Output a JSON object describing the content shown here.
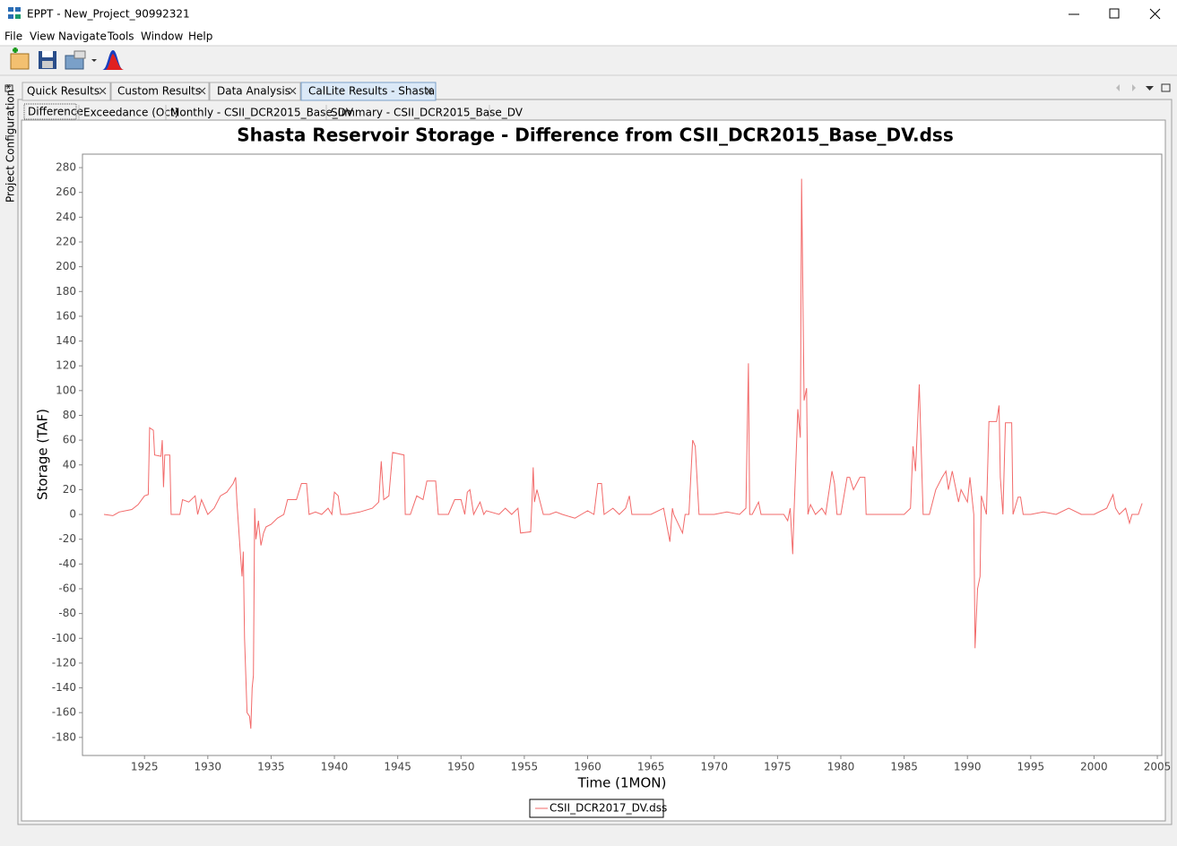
{
  "window": {
    "title": "EPPT - New_Project_90992321"
  },
  "menu": [
    "File",
    "View",
    "Navigate",
    "Tools",
    "Window",
    "Help"
  ],
  "side_panel": "Project Configuration*",
  "tabs": [
    "Quick Results",
    "Custom Results",
    "Data Analysis",
    "CalLite Results - Shasta"
  ],
  "subtabs": [
    "Difference",
    "Exceedance (Oct)",
    "Monthly - CSII_DCR2015_Base_DV",
    "Summary - CSII_DCR2015_Base_DV"
  ],
  "chart_data": {
    "type": "line",
    "title": "Shasta Reservoir Storage - Difference from CSII_DCR2015_Base_DV.dss",
    "x_label": "Time (1MON)",
    "y_label": "Storage (TAF)",
    "x": [
      1921.8,
      1922.5,
      1923.0,
      1924.0,
      1924.5,
      1925.0,
      1925.3,
      1925.4,
      1925.7,
      1925.8,
      1926.3,
      1926.4,
      1926.5,
      1926.6,
      1927.0,
      1927.1,
      1927.8,
      1928.0,
      1928.5,
      1929.0,
      1929.2,
      1929.5,
      1930.0,
      1930.5,
      1931.0,
      1931.5,
      1932.0,
      1932.2,
      1932.3,
      1932.6,
      1932.7,
      1932.8,
      1932.9,
      1933.1,
      1933.3,
      1933.4,
      1933.5,
      1933.6,
      1933.7,
      1933.8,
      1934.0,
      1934.2,
      1934.4,
      1934.6,
      1935.0,
      1935.5,
      1936.0,
      1936.3,
      1937.0,
      1937.4,
      1937.8,
      1938.0,
      1938.5,
      1939.0,
      1939.5,
      1939.8,
      1940.0,
      1940.3,
      1940.5,
      1941.0,
      1942.0,
      1943.0,
      1943.5,
      1943.7,
      1943.9,
      1944.3,
      1944.6,
      1945.5,
      1945.6,
      1946.0,
      1946.5,
      1947.0,
      1947.3,
      1948.0,
      1948.2,
      1949.0,
      1949.5,
      1950.0,
      1950.3,
      1950.5,
      1950.7,
      1951.0,
      1951.5,
      1951.8,
      1952.0,
      1953.0,
      1953.5,
      1954.0,
      1954.5,
      1954.7,
      1955.5,
      1955.6,
      1955.7,
      1955.8,
      1956.0,
      1956.5,
      1957.0,
      1957.5,
      1958.0,
      1959.0,
      1959.5,
      1960.0,
      1960.5,
      1960.8,
      1961.1,
      1961.3,
      1962.0,
      1962.5,
      1963.0,
      1963.3,
      1963.5,
      1964.0,
      1965.0,
      1966.0,
      1966.5,
      1966.7,
      1966.8,
      1967.5,
      1967.7,
      1968.0,
      1968.3,
      1968.5,
      1968.8,
      1970.0,
      1971.0,
      1972.0,
      1972.5,
      1972.7,
      1972.8,
      1973.0,
      1973.5,
      1973.7,
      1974.0,
      1975.5,
      1975.8,
      1976.0,
      1976.2,
      1976.3,
      1976.6,
      1976.8,
      1976.9,
      1977.1,
      1977.3,
      1977.4,
      1977.6,
      1978.0,
      1978.5,
      1978.8,
      1979.3,
      1979.5,
      1979.7,
      1980.0,
      1980.5,
      1980.7,
      1981.0,
      1981.5,
      1981.9,
      1982.0,
      1983.0,
      1984.0,
      1985.0,
      1985.5,
      1985.7,
      1985.9,
      1986.2,
      1986.5,
      1987.0,
      1987.5,
      1988.0,
      1988.3,
      1988.5,
      1988.8,
      1989.0,
      1989.3,
      1989.5,
      1990.0,
      1990.2,
      1990.5,
      1990.6,
      1990.8,
      1991.0,
      1991.1,
      1991.5,
      1991.7,
      1992.3,
      1992.5,
      1992.6,
      1992.8,
      1993.0,
      1993.5,
      1993.6,
      1994.0,
      1994.2,
      1994.4,
      1995.0,
      1996.0,
      1997.0,
      1998.0,
      1999.0,
      2000.0,
      2001.0,
      2001.5,
      2001.7,
      2002.0,
      2002.5,
      2002.8,
      2003.0,
      2003.5,
      2003.8
    ],
    "series": [
      {
        "name": "CSII_DCR2017_DV.dss",
        "color": "#f26a6a",
        "values": [
          0,
          -1,
          2,
          4,
          8,
          15,
          16,
          70,
          68,
          48,
          47,
          60,
          22,
          48,
          48,
          0,
          0,
          12,
          10,
          15,
          0,
          12,
          0,
          5,
          15,
          18,
          25,
          30,
          10,
          -35,
          -50,
          -30,
          -100,
          -160,
          -163,
          -173,
          -140,
          -130,
          5,
          -20,
          -5,
          -25,
          -15,
          -10,
          -8,
          -3,
          0,
          12,
          12,
          25,
          25,
          0,
          2,
          0,
          5,
          0,
          18,
          15,
          0,
          0,
          2,
          5,
          10,
          43,
          12,
          15,
          50,
          48,
          0,
          0,
          15,
          12,
          27,
          27,
          0,
          0,
          12,
          12,
          0,
          18,
          20,
          0,
          10,
          0,
          3,
          0,
          5,
          0,
          5,
          -15,
          -14,
          10,
          38,
          10,
          20,
          0,
          0,
          2,
          0,
          -3,
          0,
          3,
          0,
          25,
          25,
          0,
          5,
          0,
          5,
          15,
          0,
          0,
          0,
          5,
          -22,
          5,
          0,
          -15,
          0,
          0,
          60,
          55,
          0,
          0,
          2,
          0,
          5,
          122,
          0,
          0,
          10,
          0,
          0,
          0,
          -5,
          5,
          -32,
          0,
          85,
          62,
          271,
          92,
          102,
          0,
          8,
          0,
          5,
          0,
          35,
          25,
          0,
          0,
          30,
          30,
          20,
          30,
          30,
          0,
          0,
          0,
          0,
          5,
          55,
          35,
          105,
          0,
          0,
          20,
          30,
          35,
          20,
          35,
          25,
          10,
          20,
          10,
          30,
          0,
          -108,
          -60,
          -50,
          15,
          0,
          75,
          75,
          88,
          30,
          0,
          74,
          74,
          0,
          14,
          14,
          0,
          0,
          2,
          0,
          5,
          0,
          0,
          5,
          16,
          5,
          0,
          5,
          -7,
          0,
          0,
          9
        ]
      }
    ],
    "xlim": [
      1920.1,
      2005.35
    ],
    "ylim": [
      -194.6,
      290.9
    ],
    "xticks": [
      1925,
      1930,
      1935,
      1940,
      1945,
      1950,
      1955,
      1960,
      1965,
      1970,
      1975,
      1980,
      1985,
      1990,
      1995,
      2000,
      2005
    ],
    "yticks": [
      -180,
      -160,
      -140,
      -120,
      -100,
      -80,
      -60,
      -40,
      -20,
      0,
      20,
      40,
      60,
      80,
      100,
      120,
      140,
      160,
      180,
      200,
      220,
      240,
      260,
      280
    ],
    "grid": false,
    "legend": "bottom"
  }
}
